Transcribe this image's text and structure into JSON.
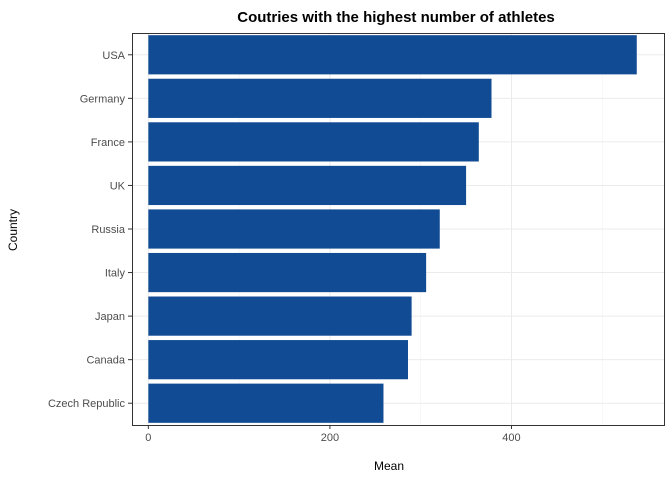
{
  "chart_data": {
    "type": "bar",
    "orientation": "horizontal",
    "title": "Coutries with the highest number of athletes",
    "xlabel": "Mean",
    "ylabel": "Country",
    "categories": [
      "USA",
      "Germany",
      "France",
      "UK",
      "Russia",
      "Italy",
      "Japan",
      "Canada",
      "Czech Republic"
    ],
    "values": [
      538,
      378,
      364,
      350,
      321,
      306,
      290,
      286,
      259
    ],
    "xlim": [
      -18,
      568
    ],
    "xticks": [
      0,
      200,
      400
    ],
    "bar_color": "#114b93",
    "grid": true,
    "legend": "none"
  }
}
